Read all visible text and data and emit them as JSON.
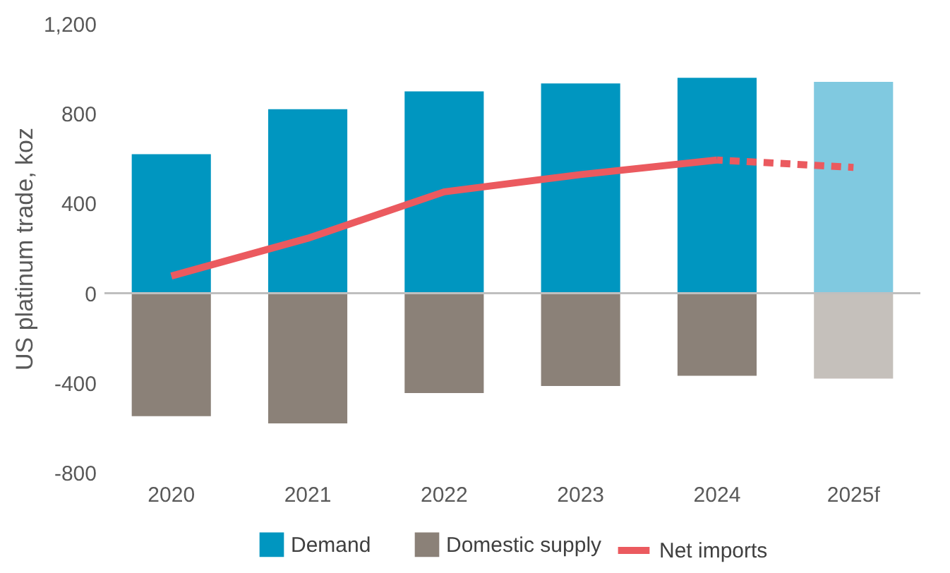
{
  "chart_data": {
    "type": "bar",
    "ylabel": "US platinum trade, koz",
    "categories": [
      "2020",
      "2021",
      "2022",
      "2023",
      "2024",
      "2025f"
    ],
    "series": [
      {
        "name": "Demand",
        "color": "#0096c0",
        "colors": [
          "#0096c0",
          "#0096c0",
          "#0096c0",
          "#0096c0",
          "#0096c0",
          "#80c9e0"
        ],
        "values": [
          620,
          820,
          900,
          935,
          960,
          942
        ]
      },
      {
        "name": "Domestic supply",
        "color": "#8b8178",
        "colors": [
          "#8b8178",
          "#8b8178",
          "#8b8178",
          "#8b8178",
          "#8b8178",
          "#c5c0bb"
        ],
        "values": [
          -548,
          -580,
          -445,
          -413,
          -368,
          -380
        ]
      },
      {
        "name": "Net imports",
        "type": "line",
        "color": "#eb5a5f",
        "line_style": "solid",
        "values": [
          77,
          245,
          452,
          529,
          594,
          null
        ]
      },
      {
        "type": "line",
        "color": "#eb5a5f",
        "line_style": "dashed",
        "values": [
          null,
          null,
          null,
          null,
          594,
          561
        ]
      }
    ],
    "stacked": true,
    "ylim": [
      -800,
      1200
    ],
    "yticks": [
      -800,
      -400,
      0,
      400,
      800,
      {
        "value": 1200,
        "label": "1,200"
      }
    ],
    "ref_lines": [
      {
        "axis": "y",
        "value": 0,
        "color": "#bfbfbf"
      }
    ],
    "grid": false,
    "legend": "bottom"
  }
}
